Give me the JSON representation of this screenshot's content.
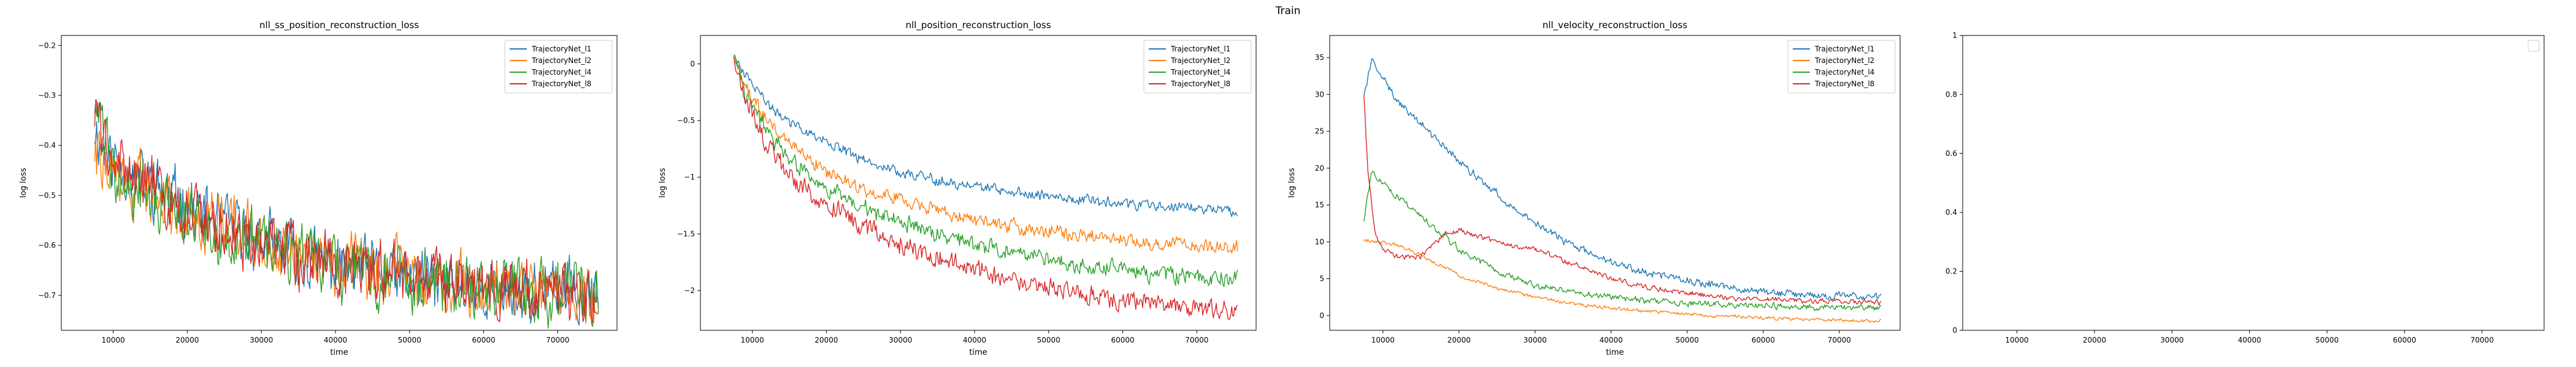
{
  "figure": {
    "suptitle": "Train"
  },
  "chart_data": [
    {
      "type": "line",
      "title": "nll_ss_position_reconstruction_loss",
      "xlabel": "time",
      "ylabel": "log loss",
      "xlim": [
        3000,
        78000
      ],
      "ylim": [
        -0.77,
        -0.18
      ],
      "xticks": [
        10000,
        20000,
        30000,
        40000,
        50000,
        60000,
        70000
      ],
      "yticks": [
        -0.7,
        -0.6,
        -0.5,
        -0.4,
        -0.3,
        -0.2
      ],
      "legend": "top-right",
      "series": [
        {
          "name": "TrajectoryNet_l1",
          "color": "#1f77b4",
          "seed": 11,
          "x_start": 7500,
          "x_end": 75500,
          "noise": 0.05,
          "points": [
            [
              7500,
              -0.36
            ],
            [
              9000,
              -0.42
            ],
            [
              12000,
              -0.45
            ],
            [
              15000,
              -0.48
            ],
            [
              20000,
              -0.52
            ],
            [
              25000,
              -0.56
            ],
            [
              30000,
              -0.59
            ],
            [
              35000,
              -0.62
            ],
            [
              40000,
              -0.64
            ],
            [
              45000,
              -0.655
            ],
            [
              50000,
              -0.67
            ],
            [
              55000,
              -0.675
            ],
            [
              60000,
              -0.685
            ],
            [
              65000,
              -0.69
            ],
            [
              70000,
              -0.695
            ],
            [
              75500,
              -0.7
            ]
          ]
        },
        {
          "name": "TrajectoryNet_l2",
          "color": "#ff7f0e",
          "seed": 22,
          "x_start": 7500,
          "x_end": 75500,
          "noise": 0.05,
          "points": [
            [
              7500,
              -0.4
            ],
            [
              9000,
              -0.45
            ],
            [
              12000,
              -0.47
            ],
            [
              15000,
              -0.5
            ],
            [
              20000,
              -0.53
            ],
            [
              25000,
              -0.56
            ],
            [
              30000,
              -0.59
            ],
            [
              35000,
              -0.62
            ],
            [
              40000,
              -0.635
            ],
            [
              45000,
              -0.65
            ],
            [
              50000,
              -0.665
            ],
            [
              55000,
              -0.675
            ],
            [
              60000,
              -0.68
            ],
            [
              65000,
              -0.69
            ],
            [
              70000,
              -0.695
            ],
            [
              75500,
              -0.7
            ]
          ]
        },
        {
          "name": "TrajectoryNet_l4",
          "color": "#2ca02c",
          "seed": 33,
          "x_start": 7500,
          "x_end": 75500,
          "noise": 0.055,
          "points": [
            [
              7500,
              -0.3
            ],
            [
              9000,
              -0.4
            ],
            [
              12000,
              -0.46
            ],
            [
              15000,
              -0.5
            ],
            [
              20000,
              -0.54
            ],
            [
              25000,
              -0.57
            ],
            [
              30000,
              -0.6
            ],
            [
              35000,
              -0.63
            ],
            [
              40000,
              -0.645
            ],
            [
              45000,
              -0.66
            ],
            [
              50000,
              -0.67
            ],
            [
              55000,
              -0.675
            ],
            [
              60000,
              -0.685
            ],
            [
              65000,
              -0.69
            ],
            [
              70000,
              -0.695
            ],
            [
              75500,
              -0.7
            ]
          ]
        },
        {
          "name": "TrajectoryNet_l8",
          "color": "#d62728",
          "seed": 44,
          "x_start": 7500,
          "x_end": 75500,
          "noise": 0.05,
          "points": [
            [
              7500,
              -0.33
            ],
            [
              9000,
              -0.4
            ],
            [
              12000,
              -0.45
            ],
            [
              15000,
              -0.49
            ],
            [
              20000,
              -0.53
            ],
            [
              25000,
              -0.57
            ],
            [
              30000,
              -0.6
            ],
            [
              35000,
              -0.625
            ],
            [
              40000,
              -0.64
            ],
            [
              45000,
              -0.655
            ],
            [
              50000,
              -0.665
            ],
            [
              55000,
              -0.675
            ],
            [
              60000,
              -0.685
            ],
            [
              65000,
              -0.69
            ],
            [
              70000,
              -0.695
            ],
            [
              75500,
              -0.7
            ]
          ]
        }
      ]
    },
    {
      "type": "line",
      "title": "nll_position_reconstruction_loss",
      "xlabel": "time",
      "ylabel": "log loss",
      "xlim": [
        3000,
        78000
      ],
      "ylim": [
        -2.35,
        0.25
      ],
      "xticks": [
        10000,
        20000,
        30000,
        40000,
        50000,
        60000,
        70000
      ],
      "yticks": [
        -2.0,
        -1.5,
        -1.0,
        -0.5,
        0.0
      ],
      "legend": "top-right",
      "series": [
        {
          "name": "TrajectoryNet_l1",
          "color": "#1f77b4",
          "seed": 55,
          "x_start": 7500,
          "x_end": 75500,
          "noise": 0.04,
          "points": [
            [
              7500,
              0.1
            ],
            [
              9000,
              -0.1
            ],
            [
              12000,
              -0.35
            ],
            [
              15000,
              -0.5
            ],
            [
              20000,
              -0.7
            ],
            [
              25000,
              -0.85
            ],
            [
              30000,
              -0.95
            ],
            [
              35000,
              -1.02
            ],
            [
              40000,
              -1.08
            ],
            [
              45000,
              -1.13
            ],
            [
              50000,
              -1.17
            ],
            [
              55000,
              -1.2
            ],
            [
              60000,
              -1.23
            ],
            [
              65000,
              -1.25
            ],
            [
              70000,
              -1.27
            ],
            [
              75500,
              -1.3
            ]
          ]
        },
        {
          "name": "TrajectoryNet_l2",
          "color": "#ff7f0e",
          "seed": 66,
          "x_start": 7500,
          "x_end": 75500,
          "noise": 0.05,
          "points": [
            [
              7500,
              0.1
            ],
            [
              9000,
              -0.2
            ],
            [
              12000,
              -0.5
            ],
            [
              15000,
              -0.7
            ],
            [
              20000,
              -0.95
            ],
            [
              25000,
              -1.1
            ],
            [
              30000,
              -1.2
            ],
            [
              35000,
              -1.3
            ],
            [
              40000,
              -1.37
            ],
            [
              45000,
              -1.43
            ],
            [
              50000,
              -1.48
            ],
            [
              55000,
              -1.52
            ],
            [
              60000,
              -1.55
            ],
            [
              65000,
              -1.58
            ],
            [
              70000,
              -1.6
            ],
            [
              75500,
              -1.62
            ]
          ]
        },
        {
          "name": "TrajectoryNet_l4",
          "color": "#2ca02c",
          "seed": 77,
          "x_start": 7500,
          "x_end": 75500,
          "noise": 0.06,
          "points": [
            [
              7500,
              0.1
            ],
            [
              9000,
              -0.25
            ],
            [
              12000,
              -0.6
            ],
            [
              15000,
              -0.85
            ],
            [
              20000,
              -1.1
            ],
            [
              25000,
              -1.28
            ],
            [
              30000,
              -1.4
            ],
            [
              35000,
              -1.5
            ],
            [
              40000,
              -1.6
            ],
            [
              45000,
              -1.67
            ],
            [
              50000,
              -1.73
            ],
            [
              55000,
              -1.78
            ],
            [
              60000,
              -1.82
            ],
            [
              65000,
              -1.86
            ],
            [
              70000,
              -1.88
            ],
            [
              75500,
              -1.9
            ]
          ]
        },
        {
          "name": "TrajectoryNet_l8",
          "color": "#d62728",
          "seed": 88,
          "x_start": 7500,
          "x_end": 75500,
          "noise": 0.07,
          "points": [
            [
              7500,
              0.1
            ],
            [
              9000,
              -0.3
            ],
            [
              12000,
              -0.7
            ],
            [
              15000,
              -1.0
            ],
            [
              20000,
              -1.25
            ],
            [
              25000,
              -1.45
            ],
            [
              30000,
              -1.6
            ],
            [
              35000,
              -1.72
            ],
            [
              40000,
              -1.82
            ],
            [
              45000,
              -1.9
            ],
            [
              50000,
              -1.97
            ],
            [
              55000,
              -2.03
            ],
            [
              60000,
              -2.08
            ],
            [
              65000,
              -2.12
            ],
            [
              70000,
              -2.16
            ],
            [
              75500,
              -2.2
            ]
          ]
        }
      ]
    },
    {
      "type": "line",
      "title": "nll_velocity_reconstruction_loss",
      "xlabel": "time",
      "ylabel": "log loss",
      "xlim": [
        3000,
        78000
      ],
      "ylim": [
        -2,
        38
      ],
      "xticks": [
        10000,
        20000,
        30000,
        40000,
        50000,
        60000,
        70000
      ],
      "yticks": [
        0,
        5,
        10,
        15,
        20,
        25,
        30,
        35
      ],
      "legend": "top-right",
      "series": [
        {
          "name": "TrajectoryNet_l1",
          "color": "#1f77b4",
          "seed": 99,
          "x_start": 7500,
          "x_end": 75500,
          "noise": 0.45,
          "points": [
            [
              7500,
              30
            ],
            [
              8500,
              34.5
            ],
            [
              10000,
              32
            ],
            [
              12000,
              29
            ],
            [
              15000,
              26
            ],
            [
              20000,
              21
            ],
            [
              25000,
              16.5
            ],
            [
              30000,
              12.5
            ],
            [
              35000,
              9.5
            ],
            [
              40000,
              7.3
            ],
            [
              45000,
              5.8
            ],
            [
              50000,
              4.7
            ],
            [
              55000,
              3.9
            ],
            [
              60000,
              3.3
            ],
            [
              65000,
              2.9
            ],
            [
              70000,
              2.6
            ],
            [
              75500,
              2.4
            ]
          ]
        },
        {
          "name": "TrajectoryNet_l2",
          "color": "#ff7f0e",
          "seed": 111,
          "x_start": 7500,
          "x_end": 75500,
          "noise": 0.2,
          "points": [
            [
              7500,
              10.2
            ],
            [
              10000,
              10.0
            ],
            [
              12000,
              9.5
            ],
            [
              15000,
              8.2
            ],
            [
              20000,
              5.5
            ],
            [
              25000,
              3.7
            ],
            [
              30000,
              2.5
            ],
            [
              35000,
              1.6
            ],
            [
              40000,
              1.0
            ],
            [
              45000,
              0.6
            ],
            [
              50000,
              0.2
            ],
            [
              55000,
              -0.1
            ],
            [
              60000,
              -0.3
            ],
            [
              65000,
              -0.5
            ],
            [
              70000,
              -0.6
            ],
            [
              75500,
              -0.7
            ]
          ]
        },
        {
          "name": "TrajectoryNet_l4",
          "color": "#2ca02c",
          "seed": 122,
          "x_start": 7500,
          "x_end": 75500,
          "noise": 0.35,
          "points": [
            [
              7500,
              13
            ],
            [
              8500,
              19.5
            ],
            [
              10000,
              18
            ],
            [
              12000,
              16
            ],
            [
              15000,
              13.5
            ],
            [
              20000,
              9
            ],
            [
              25000,
              6
            ],
            [
              30000,
              4.2
            ],
            [
              35000,
              3.2
            ],
            [
              40000,
              2.5
            ],
            [
              45000,
              2.0
            ],
            [
              50000,
              1.7
            ],
            [
              55000,
              1.5
            ],
            [
              60000,
              1.3
            ],
            [
              65000,
              1.2
            ],
            [
              70000,
              1.1
            ],
            [
              75500,
              1.0
            ]
          ]
        },
        {
          "name": "TrajectoryNet_l8",
          "color": "#d62728",
          "seed": 133,
          "x_start": 7500,
          "x_end": 75500,
          "noise": 0.3,
          "points": [
            [
              7500,
              30
            ],
            [
              8000,
              20
            ],
            [
              9000,
              11
            ],
            [
              10000,
              9
            ],
            [
              12000,
              8
            ],
            [
              15000,
              8
            ],
            [
              18000,
              11
            ],
            [
              20000,
              11.5
            ],
            [
              25000,
              10
            ],
            [
              30000,
              9
            ],
            [
              35000,
              7
            ],
            [
              40000,
              5
            ],
            [
              45000,
              3.8
            ],
            [
              50000,
              3.0
            ],
            [
              55000,
              2.5
            ],
            [
              60000,
              2.2
            ],
            [
              65000,
              2.0
            ],
            [
              70000,
              1.9
            ],
            [
              75500,
              1.8
            ]
          ]
        }
      ]
    },
    {
      "type": "line",
      "title": "",
      "xlabel": "",
      "ylabel": "",
      "xlim": [
        3000,
        78000
      ],
      "ylim": [
        0.0,
        1.0
      ],
      "xticks": [
        10000,
        20000,
        30000,
        40000,
        50000,
        60000,
        70000
      ],
      "yticks": [
        0.0,
        0.2,
        0.4,
        0.6,
        0.8,
        1.0
      ],
      "legend": "top-right",
      "series": []
    }
  ]
}
